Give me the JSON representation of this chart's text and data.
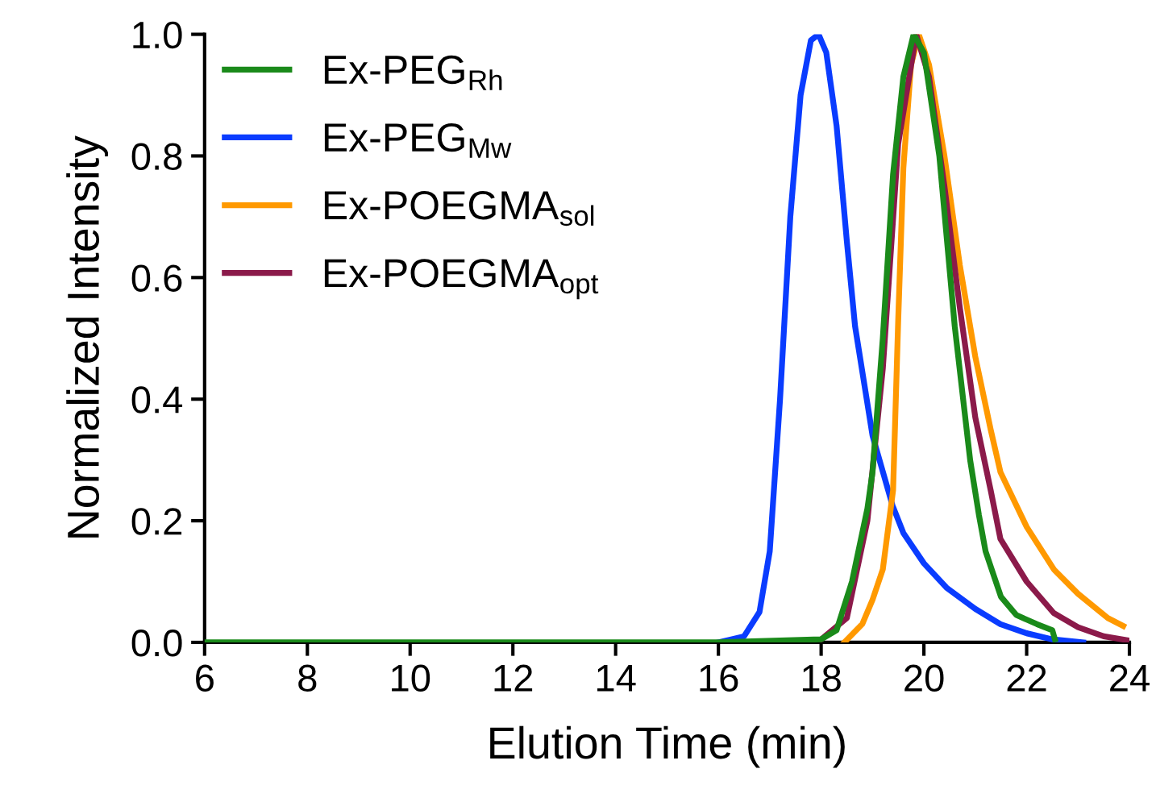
{
  "chart_data": {
    "type": "line",
    "xlabel": "Elution Time (min)",
    "ylabel": "Normalized Intensity",
    "xlim": [
      6,
      24
    ],
    "xticks": [
      6,
      8,
      10,
      12,
      14,
      16,
      18,
      20,
      22,
      24
    ],
    "ylim": [
      0,
      1.0
    ],
    "yticks": [
      {
        "value": 0,
        "label": "0.0"
      },
      0.2,
      0.4,
      0.6,
      0.8,
      {
        "value": 1.0,
        "label": "1.0"
      }
    ],
    "grid": false,
    "legend": "top left",
    "marker": "none",
    "line_style": "solid",
    "series": [
      {
        "name": "Ex-PEG$_{Rh}$",
        "color": "#1a8a1a",
        "x": [
          6,
          10,
          12,
          14,
          16,
          18.0,
          18.3,
          18.6,
          18.9,
          19.0,
          19.2,
          19.4,
          19.6,
          19.8,
          20.0,
          20.3,
          20.6,
          20.9,
          21.07,
          21.2,
          21.5,
          21.8,
          22.2,
          22.5,
          22.55
        ],
        "values": [
          0,
          0,
          0,
          0,
          0,
          0.005,
          0.02,
          0.1,
          0.22,
          0.28,
          0.5,
          0.77,
          0.93,
          1.0,
          0.97,
          0.8,
          0.52,
          0.3,
          0.21,
          0.15,
          0.075,
          0.045,
          0.03,
          0.02,
          0.005
        ]
      },
      {
        "name": "Ex-PEG$_{Mw}$",
        "color": "#0a3cff",
        "x": [
          16,
          16.5,
          16.8,
          17.0,
          17.2,
          17.4,
          17.6,
          17.8,
          17.95,
          18.1,
          18.3,
          18.5,
          18.66,
          19.0,
          19.39,
          19.6,
          20.0,
          20.44,
          21.0,
          21.49,
          22.0,
          22.5,
          23.1
        ],
        "values": [
          0,
          0.01,
          0.05,
          0.15,
          0.4,
          0.7,
          0.9,
          0.99,
          1.0,
          0.97,
          0.85,
          0.66,
          0.52,
          0.34,
          0.225,
          0.18,
          0.13,
          0.09,
          0.055,
          0.03,
          0.015,
          0.005,
          0
        ]
      },
      {
        "name": "Ex-POEGMA$_{sol}$",
        "color": "#ff9900",
        "x": [
          18.45,
          18.8,
          19.0,
          19.2,
          19.4,
          19.5,
          19.6,
          19.75,
          19.9,
          20.1,
          20.4,
          20.7,
          21.0,
          21.3,
          21.49,
          22.0,
          22.53,
          23.0,
          23.58,
          23.88
        ],
        "values": [
          0,
          0.03,
          0.07,
          0.12,
          0.25,
          0.53,
          0.78,
          0.95,
          1.0,
          0.95,
          0.8,
          0.62,
          0.47,
          0.35,
          0.28,
          0.19,
          0.12,
          0.08,
          0.04,
          0.027
        ]
      },
      {
        "name": "Ex-POEGMA$_{opt}$",
        "color": "#8b1a4a",
        "x": [
          18.0,
          18.5,
          18.9,
          19.2,
          19.5,
          19.85,
          20.1,
          20.4,
          20.7,
          21.0,
          21.3,
          21.49,
          22.0,
          22.53,
          23.0,
          23.5,
          24.0
        ],
        "values": [
          0.005,
          0.04,
          0.2,
          0.45,
          0.82,
          1.0,
          0.93,
          0.75,
          0.55,
          0.37,
          0.25,
          0.17,
          0.1,
          0.048,
          0.025,
          0.01,
          0.003
        ]
      }
    ]
  }
}
